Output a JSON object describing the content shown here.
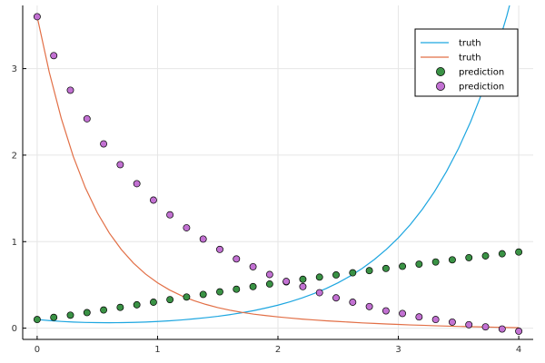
{
  "chart_data": {
    "type": "line",
    "title": "",
    "xlabel": "",
    "ylabel": "",
    "xlim": [
      -0.12,
      4.12
    ],
    "ylim": [
      -0.13,
      3.73
    ],
    "xticks": [
      0,
      1,
      2,
      3,
      4
    ],
    "yticks": [
      0,
      1,
      2,
      3
    ],
    "grid": true,
    "legend_position": "top-right",
    "series": [
      {
        "name": "truth",
        "kind": "line",
        "color": "#1da6e0",
        "x": [
          0,
          0.1,
          0.2,
          0.3,
          0.4,
          0.5,
          0.6,
          0.7,
          0.8,
          0.9,
          1.0,
          1.1,
          1.2,
          1.3,
          1.4,
          1.5,
          1.6,
          1.7,
          1.8,
          1.9,
          2.0,
          2.1,
          2.2,
          2.3,
          2.4,
          2.5,
          2.6,
          2.7,
          2.8,
          2.9,
          3.0,
          3.1,
          3.2,
          3.3,
          3.4,
          3.5,
          3.6,
          3.7,
          3.8,
          3.9,
          4.0
        ],
        "y": [
          0.1,
          0.088,
          0.078,
          0.071,
          0.066,
          0.064,
          0.063,
          0.064,
          0.067,
          0.071,
          0.077,
          0.085,
          0.095,
          0.107,
          0.121,
          0.137,
          0.156,
          0.178,
          0.203,
          0.233,
          0.266,
          0.305,
          0.349,
          0.4,
          0.458,
          0.525,
          0.602,
          0.691,
          0.793,
          0.91,
          1.044,
          1.198,
          1.375,
          1.578,
          1.811,
          2.078,
          2.385,
          2.737,
          3.141,
          3.605,
          4.137
        ]
      },
      {
        "name": "truth",
        "kind": "line",
        "color": "#e26f46",
        "x": [
          0,
          0.1,
          0.2,
          0.3,
          0.4,
          0.5,
          0.6,
          0.7,
          0.8,
          0.9,
          1.0,
          1.1,
          1.2,
          1.3,
          1.4,
          1.5,
          1.6,
          1.7,
          1.8,
          1.9,
          2.0,
          2.1,
          2.2,
          2.3,
          2.4,
          2.5,
          2.6,
          2.7,
          2.8,
          2.9,
          3.0,
          3.1,
          3.2,
          3.3,
          3.4,
          3.5,
          3.6,
          3.7,
          3.8,
          3.9,
          4.0
        ],
        "y": [
          3.6,
          2.962,
          2.426,
          1.984,
          1.624,
          1.333,
          1.098,
          0.907,
          0.752,
          0.626,
          0.524,
          0.441,
          0.374,
          0.319,
          0.275,
          0.238,
          0.208,
          0.183,
          0.162,
          0.145,
          0.13,
          0.117,
          0.105,
          0.095,
          0.085,
          0.077,
          0.069,
          0.061,
          0.055,
          0.048,
          0.043,
          0.037,
          0.033,
          0.028,
          0.024,
          0.02,
          0.017,
          0.014,
          0.011,
          0.008,
          0.005
        ]
      },
      {
        "name": "prediction",
        "kind": "scatter",
        "color": "#3a9245",
        "x": [
          0.0,
          0.138,
          0.276,
          0.414,
          0.552,
          0.69,
          0.828,
          0.966,
          1.103,
          1.241,
          1.379,
          1.517,
          1.655,
          1.793,
          1.931,
          2.069,
          2.207,
          2.345,
          2.483,
          2.621,
          2.759,
          2.897,
          3.034,
          3.172,
          3.31,
          3.448,
          3.586,
          3.724,
          3.862,
          4.0
        ],
        "y": [
          0.1,
          0.125,
          0.15,
          0.18,
          0.21,
          0.24,
          0.27,
          0.3,
          0.33,
          0.36,
          0.39,
          0.42,
          0.45,
          0.48,
          0.51,
          0.535,
          0.565,
          0.59,
          0.615,
          0.64,
          0.665,
          0.69,
          0.715,
          0.74,
          0.765,
          0.79,
          0.815,
          0.835,
          0.86,
          0.88
        ]
      },
      {
        "name": "prediction",
        "kind": "scatter",
        "color": "#c271d2",
        "x": [
          0.0,
          0.138,
          0.276,
          0.414,
          0.552,
          0.69,
          0.828,
          0.966,
          1.103,
          1.241,
          1.379,
          1.517,
          1.655,
          1.793,
          1.931,
          2.069,
          2.207,
          2.345,
          2.483,
          2.621,
          2.759,
          2.897,
          3.034,
          3.172,
          3.31,
          3.448,
          3.586,
          3.724,
          3.862,
          4.0
        ],
        "y": [
          3.6,
          3.15,
          2.75,
          2.42,
          2.13,
          1.89,
          1.67,
          1.48,
          1.31,
          1.16,
          1.03,
          0.91,
          0.8,
          0.71,
          0.62,
          0.54,
          0.48,
          0.41,
          0.35,
          0.3,
          0.25,
          0.2,
          0.17,
          0.13,
          0.1,
          0.07,
          0.04,
          0.015,
          -0.01,
          -0.035
        ]
      }
    ]
  }
}
